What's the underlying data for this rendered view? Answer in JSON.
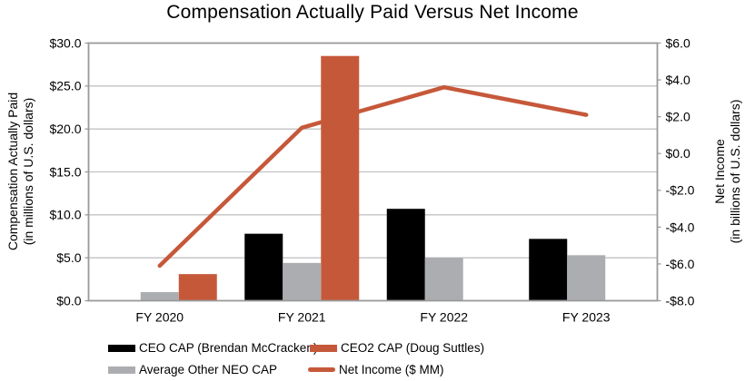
{
  "chart_data": {
    "type": "bar",
    "title": "Compensation Actually Paid Versus Net Income",
    "categories": [
      "FY 2020",
      "FY 2021",
      "FY 2022",
      "FY 2023"
    ],
    "series": [
      {
        "name": "CEO CAP (Brendan McCracken)",
        "type": "bar",
        "axis": "left",
        "slot": 0,
        "color_key": "black",
        "values": [
          0,
          7.8,
          10.7,
          7.2
        ]
      },
      {
        "name": "CEO2 CAP (Doug Suttles)",
        "type": "bar",
        "axis": "left",
        "slot": 2,
        "color_key": "orange",
        "values": [
          3.1,
          28.5,
          0,
          0
        ]
      },
      {
        "name": "Average Other NEO CAP",
        "type": "bar",
        "axis": "left",
        "slot": 1,
        "color_key": "gray",
        "values": [
          1.0,
          4.4,
          5.0,
          5.3
        ]
      },
      {
        "name": "Net Income ($ MM)",
        "type": "line",
        "axis": "right",
        "color_key": "orange",
        "values": [
          -6.1,
          1.4,
          3.6,
          2.1
        ]
      }
    ],
    "left_axis": {
      "title_line1": "Compensation Actually Paid",
      "title_line2": "(in millions of U.S. dollars)",
      "min": 0,
      "max": 30,
      "step": 5,
      "tick_values": [
        30,
        25,
        20,
        15,
        10,
        5,
        0
      ],
      "tick_labels": [
        "$30.0",
        "$25.0",
        "$20.0",
        "$15.0",
        "$10.0",
        "$5.0",
        "$0.0"
      ]
    },
    "right_axis": {
      "title_line1": "Net Income",
      "title_line2": "(in billions of U.S. dollars)",
      "min": -8,
      "max": 6,
      "step": 2,
      "tick_values": [
        6,
        4,
        2,
        0,
        -2,
        -4,
        -6,
        -8
      ],
      "tick_labels": [
        "$6.0",
        "$4.0",
        "$2.0",
        "$0.0",
        "-$2.0",
        "-$4.0",
        "-$6.0",
        "-$8.0"
      ]
    },
    "colors": {
      "black": "#000000",
      "orange": "#C6583A",
      "gray": "#ABADB0",
      "grid": "#C3C3C5",
      "border": "#9A9A9A",
      "text": "#000000"
    },
    "grid": true,
    "legend_position": "bottom"
  }
}
